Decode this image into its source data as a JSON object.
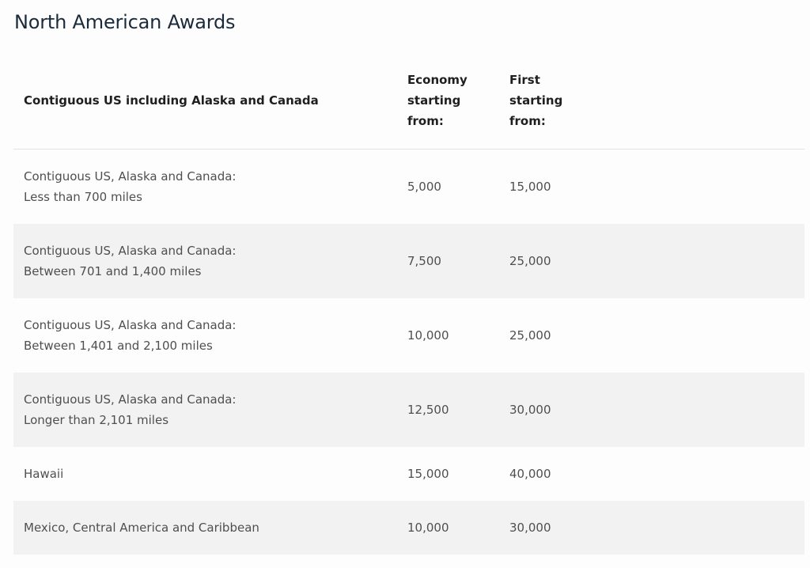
{
  "title": "North American Awards",
  "table": {
    "headers": {
      "region": "Contiguous US including Alaska and Canada",
      "economy": [
        "Economy",
        "starting",
        "from:"
      ],
      "first": [
        "First",
        "starting",
        "from:"
      ]
    },
    "rows": [
      {
        "lines": [
          "Contiguous US, Alaska and Canada:",
          "Less than 700 miles"
        ],
        "economy": "5,000",
        "first": "15,000"
      },
      {
        "lines": [
          "Contiguous US, Alaska and Canada:",
          "Between 701 and 1,400 miles"
        ],
        "economy": "7,500",
        "first": "25,000"
      },
      {
        "lines": [
          "Contiguous US, Alaska and Canada:",
          "Between 1,401 and 2,100 miles"
        ],
        "economy": "10,000",
        "first": "25,000"
      },
      {
        "lines": [
          "Contiguous US, Alaska and Canada:",
          "Longer than 2,101 miles"
        ],
        "economy": "12,500",
        "first": "30,000"
      },
      {
        "lines": [
          "Hawaii"
        ],
        "economy": "15,000",
        "first": "40,000"
      },
      {
        "lines": [
          "Mexico, Central America and Caribbean"
        ],
        "economy": "10,000",
        "first": "30,000"
      }
    ]
  }
}
